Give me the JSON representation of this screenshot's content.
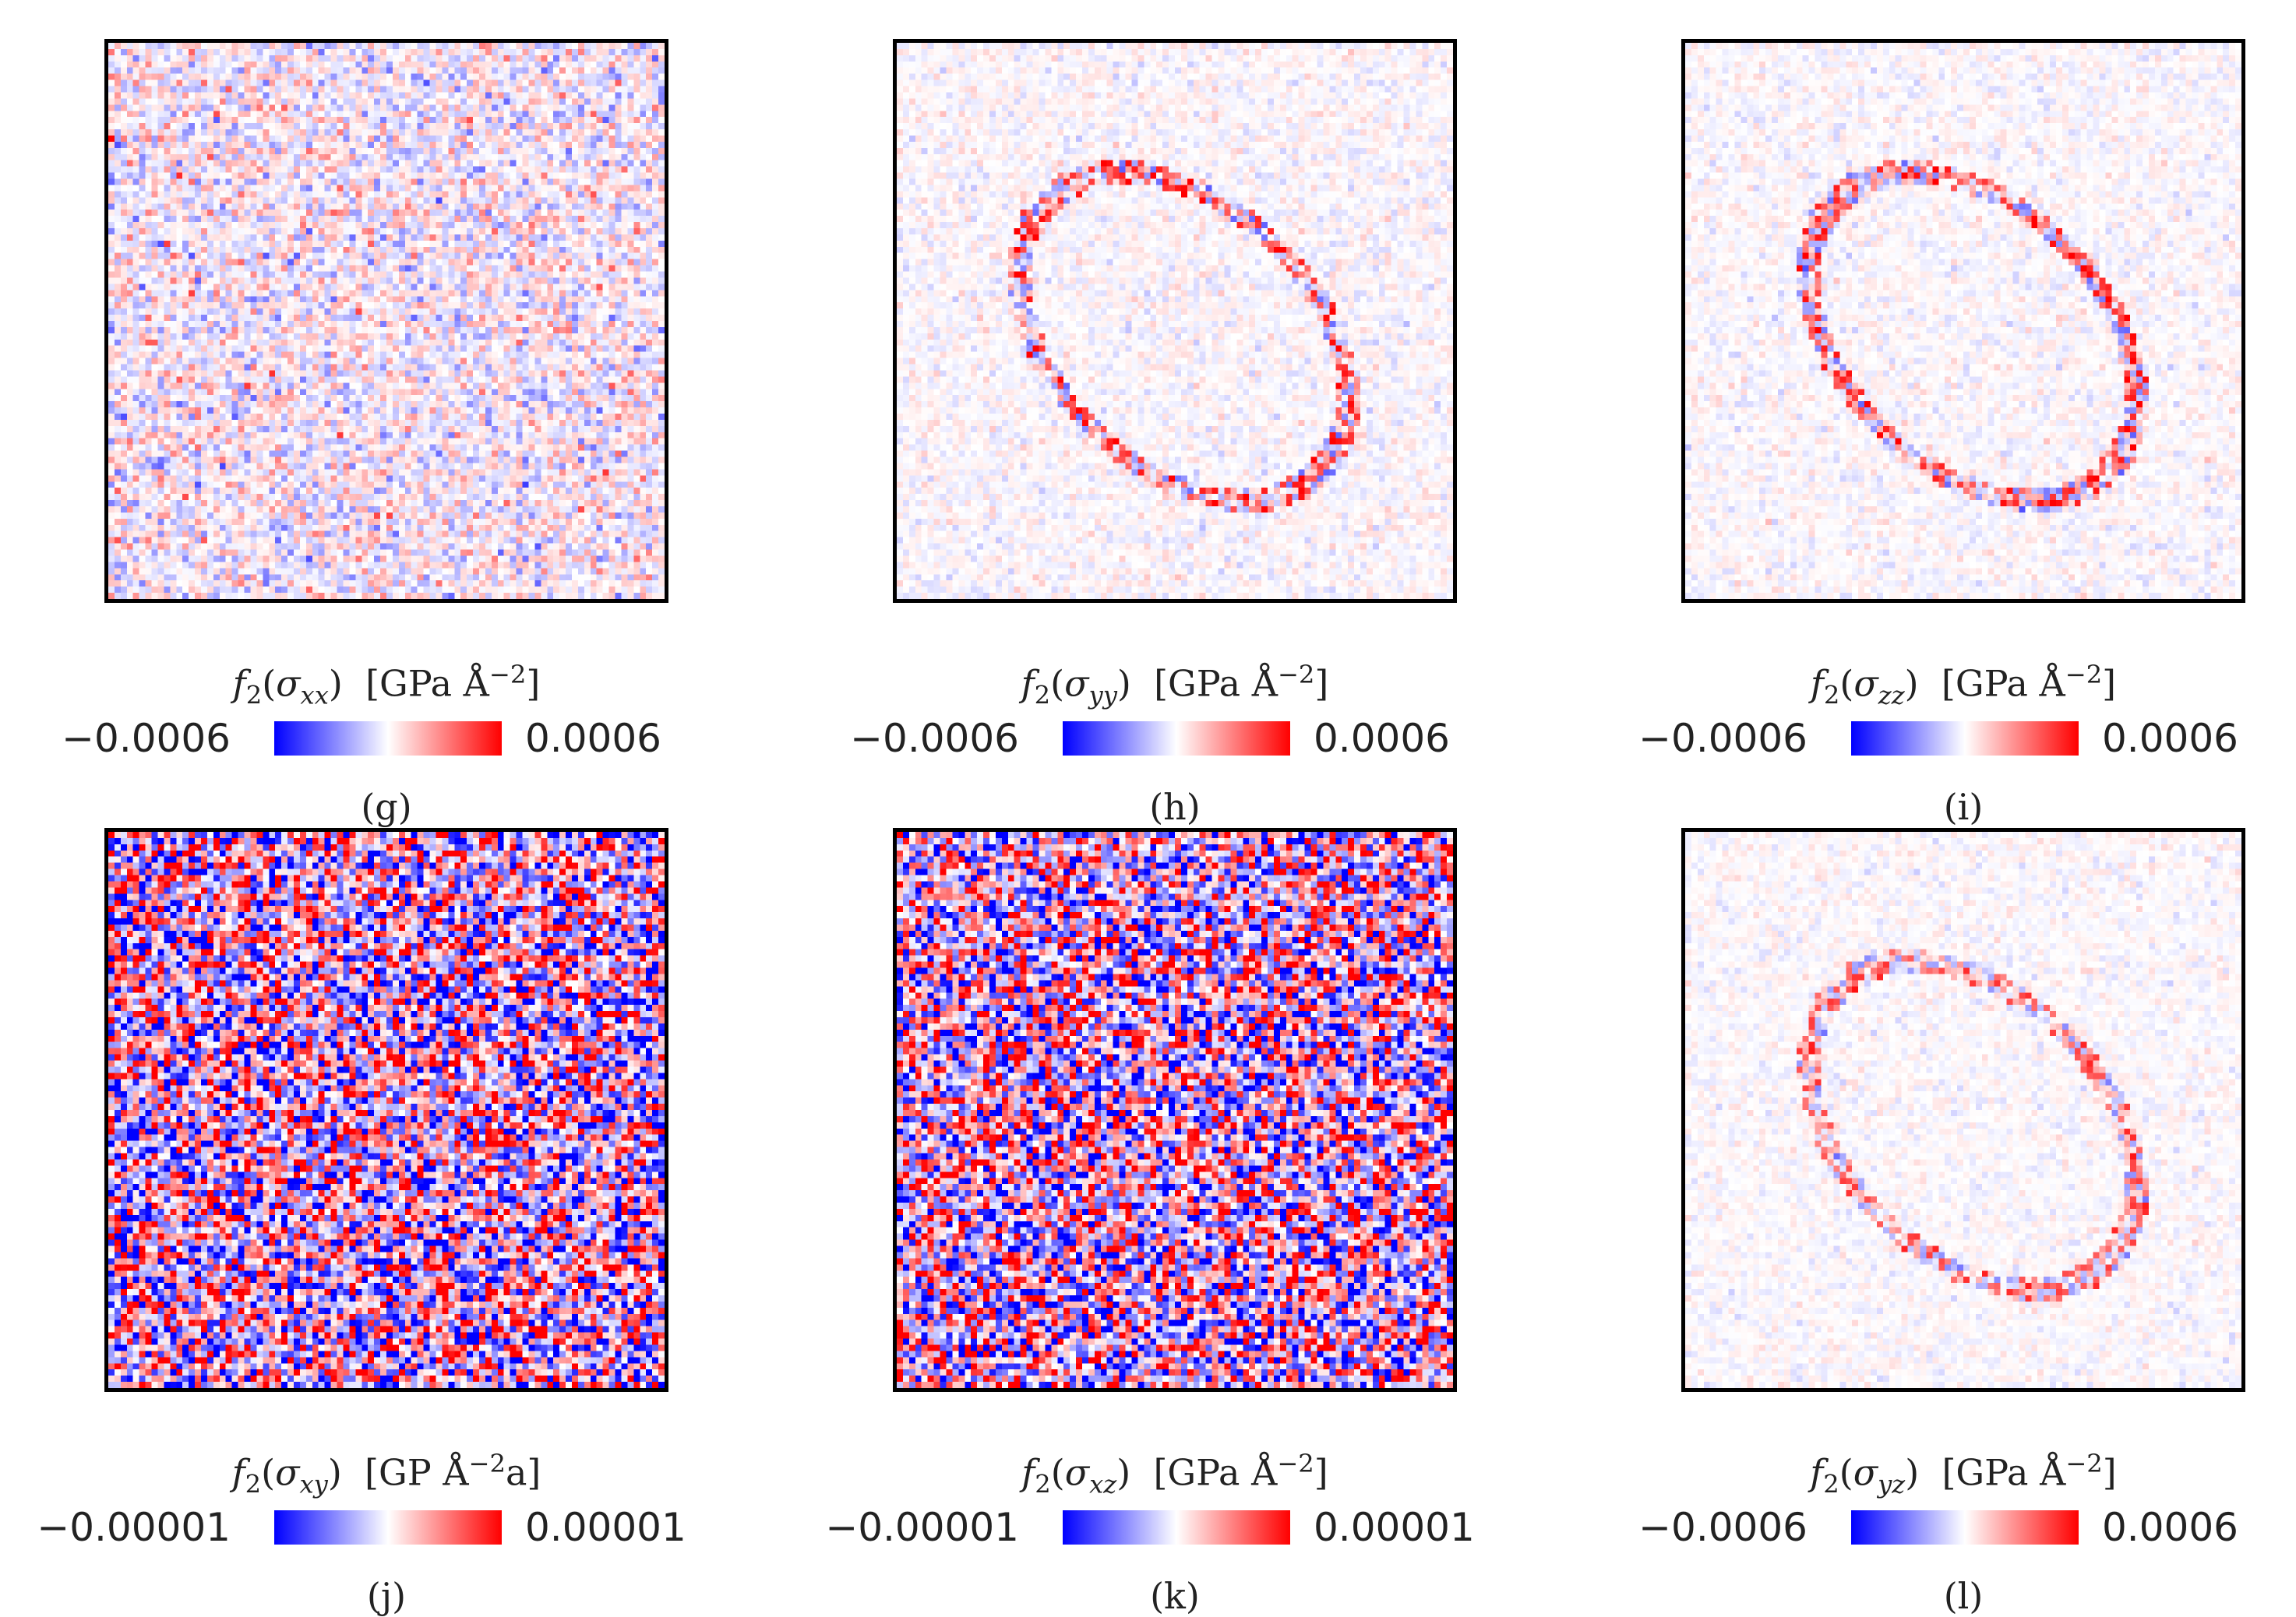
{
  "panels": [
    {
      "tag": "(g)",
      "func": "f",
      "sub": "2",
      "sigma": "σ",
      "comp": "xx",
      "units_pre": "[GPa Å",
      "exp": "−2",
      "units_post": "]",
      "cmin": "−0.0006",
      "cmax": "0.0006",
      "noise": 0.45,
      "ring": 0.0,
      "seed": 11
    },
    {
      "tag": "(h)",
      "func": "f",
      "sub": "2",
      "sigma": "σ",
      "comp": "yy",
      "units_pre": "[GPa Å",
      "exp": "−2",
      "units_post": "]",
      "cmin": "−0.0006",
      "cmax": "0.0006",
      "noise": 0.16,
      "ring": 1.0,
      "seed": 23
    },
    {
      "tag": "(i)",
      "func": "f",
      "sub": "2",
      "sigma": "σ",
      "comp": "zz",
      "units_pre": "[GPa Å",
      "exp": "−2",
      "units_post": "]",
      "cmin": "−0.0006",
      "cmax": "0.0006",
      "noise": 0.14,
      "ring": 1.0,
      "seed": 37
    },
    {
      "tag": "(j)",
      "func": "f",
      "sub": "2",
      "sigma": "σ",
      "comp": "xy",
      "units_pre": "[GP Å",
      "exp": "−2",
      "units_post": "a]",
      "cmin": "−0.00001",
      "cmax": "0.00001",
      "noise": 1.6,
      "ring": 0.0,
      "seed": 41
    },
    {
      "tag": "(k)",
      "func": "f",
      "sub": "2",
      "sigma": "σ",
      "comp": "xz",
      "units_pre": "[GPa Å",
      "exp": "−2",
      "units_post": "]",
      "cmin": "−0.00001",
      "cmax": "0.00001",
      "noise": 1.6,
      "ring": 0.0,
      "seed": 53
    },
    {
      "tag": "(l)",
      "func": "f",
      "sub": "2",
      "sigma": "σ",
      "comp": "yz",
      "units_pre": "[GPa Å",
      "exp": "−2",
      "units_post": "]",
      "cmin": "−0.0006",
      "cmax": "0.0006",
      "noise": 0.12,
      "ring": 0.8,
      "seed": 67
    }
  ],
  "chart_data": {
    "type": "heatmap",
    "colormap": "bwr",
    "grid": false,
    "layout": "2 rows x 3 columns",
    "panels": [
      {
        "label": "(g)",
        "quantity": "f2(σxx)",
        "units": "GPa Å^-2",
        "vmin": -0.0006,
        "vmax": 0.0006
      },
      {
        "label": "(h)",
        "quantity": "f2(σyy)",
        "units": "GPa Å^-2",
        "vmin": -0.0006,
        "vmax": 0.0006
      },
      {
        "label": "(i)",
        "quantity": "f2(σzz)",
        "units": "GPa Å^-2",
        "vmin": -0.0006,
        "vmax": 0.0006
      },
      {
        "label": "(j)",
        "quantity": "f2(σxy)",
        "units": "GP Å^-2a",
        "vmin": -1e-05,
        "vmax": 1e-05
      },
      {
        "label": "(k)",
        "quantity": "f2(σxz)",
        "units": "GPa Å^-2",
        "vmin": -1e-05,
        "vmax": 1e-05
      },
      {
        "label": "(l)",
        "quantity": "f2(σyz)",
        "units": "GPa Å^-2",
        "vmin": -0.0006,
        "vmax": 0.0006
      }
    ]
  }
}
